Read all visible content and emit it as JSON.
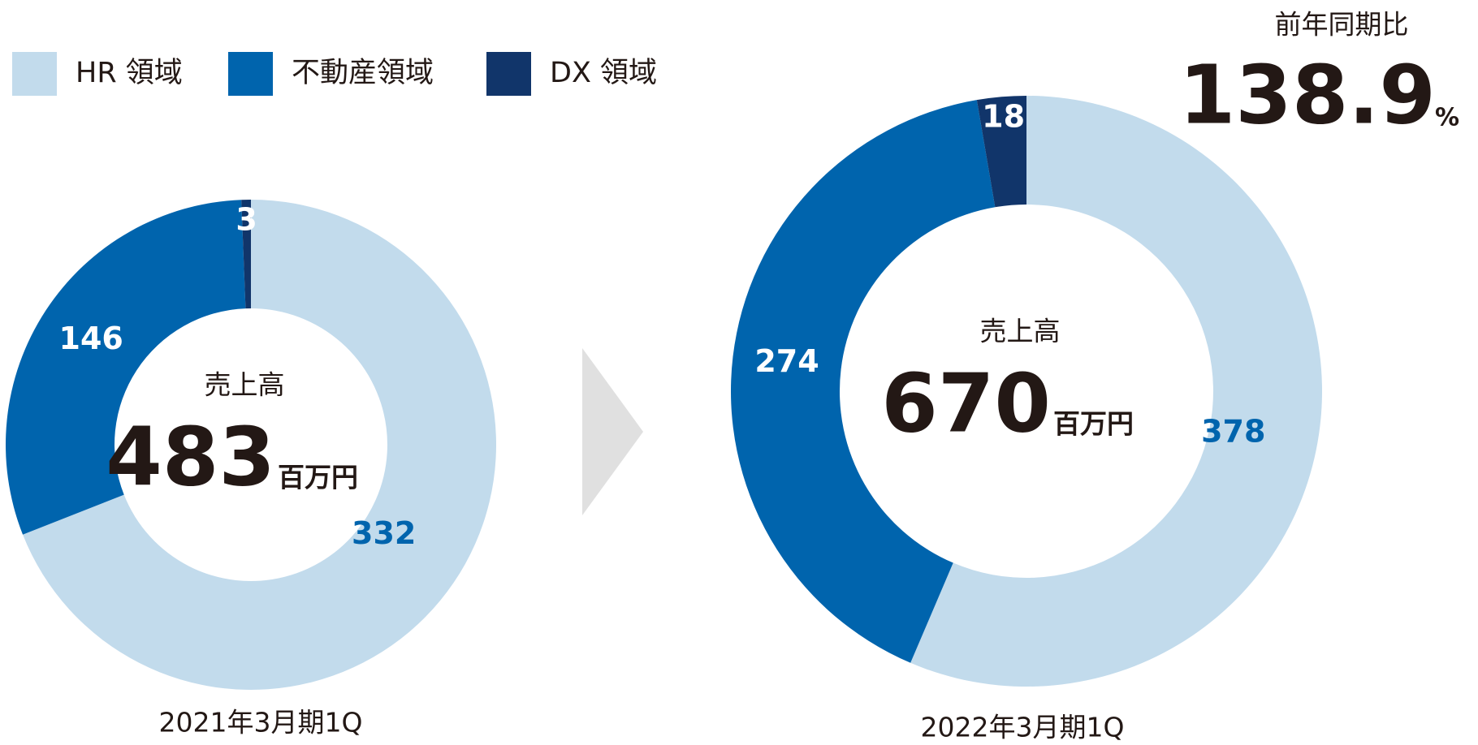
{
  "legend": {
    "categories": [
      "HR 領域",
      "不動産領域",
      "DX 領域"
    ],
    "colors": [
      "#c2dbec",
      "#0064ad",
      "#11356a"
    ],
    "label_colors": [
      "#0064ad",
      "#ffffff",
      "#ffffff"
    ]
  },
  "comparison": {
    "label": "前年同期比",
    "value": 138.9,
    "unit": "%"
  },
  "chart_data": [
    {
      "type": "pie",
      "donut": true,
      "values": [
        332,
        146,
        3
      ],
      "center_label": "売上高",
      "total": 483,
      "total_unit": "百万円",
      "caption": "2021年3月期1Q"
    },
    {
      "type": "pie",
      "donut": true,
      "values": [
        378,
        274,
        18
      ],
      "center_label": "売上高",
      "total": 670,
      "total_unit": "百万円",
      "caption": "2022年3月期1Q"
    }
  ]
}
